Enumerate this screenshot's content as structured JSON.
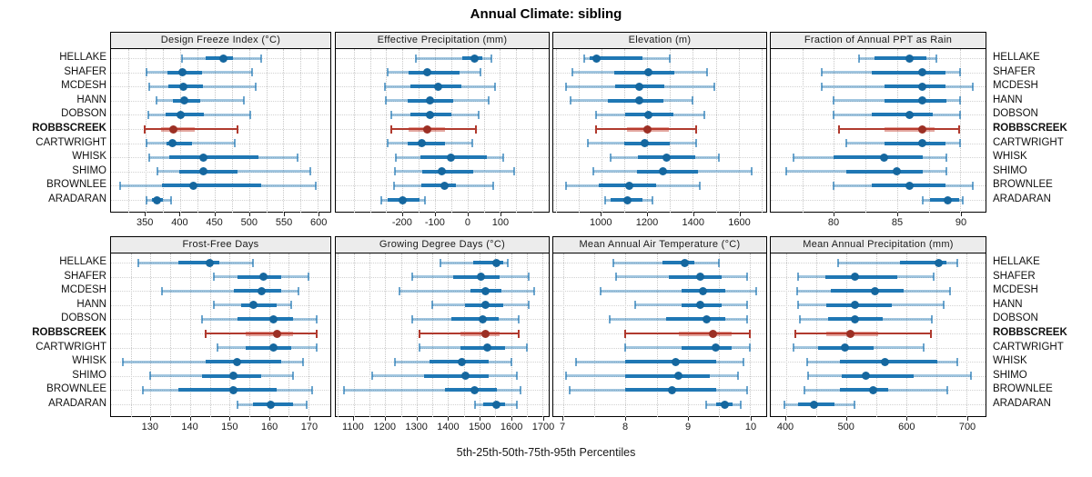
{
  "title": "Annual Climate: sibling",
  "footer": "5th-25th-50th-75th-95th Percentiles",
  "sites": [
    "HELLAKE",
    "SHAFER",
    "MCDESH",
    "HANN",
    "DOBSON",
    "ROBBSCREEK",
    "CARTWRIGHT",
    "WHISK",
    "SHIMO",
    "BROWNLEE",
    "ARADARAN"
  ],
  "highlight_site": "ROBBSCREEK",
  "colors": {
    "blue": "#1f77b4",
    "blue_dark": "#15679f",
    "blue_band": "rgba(31,119,180,0.42)",
    "blue_cap": "rgba(31,119,180,0.65)",
    "red": "#b03a2e",
    "red_dark": "#9c2f24",
    "red_band": "rgba(192,57,43,0.45)",
    "strip_bg": "#ececec",
    "grid": "#c7c7c7",
    "panel_border": "#000000"
  },
  "percentile_labels": [
    "5th",
    "25th",
    "50th",
    "75th",
    "95th"
  ],
  "chart_data": [
    {
      "type": "dot-interval",
      "title": "Design Freeze Index (°C)",
      "xlim": [
        300,
        618
      ],
      "ticks": [
        350,
        400,
        450,
        500,
        550,
        600
      ],
      "tick_labels": [
        "350",
        "400",
        "450",
        "500",
        "550",
        "600"
      ],
      "rows": [
        {
          "site": "HELLAKE",
          "values": [
            403,
            437,
            463,
            477,
            518
          ]
        },
        {
          "site": "SHAFER",
          "values": [
            352,
            382,
            404,
            432,
            505
          ]
        },
        {
          "site": "MCDESH",
          "values": [
            355,
            383,
            405,
            433,
            510
          ]
        },
        {
          "site": "HANN",
          "values": [
            366,
            390,
            406,
            429,
            492
          ]
        },
        {
          "site": "DOBSON",
          "values": [
            354,
            379,
            401,
            434,
            502
          ]
        },
        {
          "site": "ROBBSCREEK",
          "values": [
            349,
            372,
            391,
            421,
            484
          ]
        },
        {
          "site": "CARTWRIGHT",
          "values": [
            351,
            380,
            389,
            417,
            479
          ]
        },
        {
          "site": "WHISK",
          "values": [
            355,
            385,
            434,
            514,
            571
          ]
        },
        {
          "site": "SHIMO",
          "values": [
            367,
            399,
            434,
            484,
            589
          ]
        },
        {
          "site": "BROWNLEE",
          "values": [
            313,
            374,
            420,
            518,
            597
          ]
        },
        {
          "site": "ARADARAN",
          "values": [
            352,
            360,
            367,
            375,
            387
          ]
        }
      ]
    },
    {
      "type": "dot-interval",
      "title": "Effective Precipitation (mm)",
      "xlim": [
        -405,
        250
      ],
      "ticks": [
        -200,
        -100,
        0,
        100
      ],
      "tick_labels": [
        "-200",
        "-100",
        "0",
        "100"
      ],
      "rows": [
        {
          "site": "HELLAKE",
          "values": [
            -160,
            -15,
            22,
            45,
            75
          ]
        },
        {
          "site": "SHAFER",
          "values": [
            -245,
            -180,
            -125,
            -25,
            40
          ]
        },
        {
          "site": "MCDESH",
          "values": [
            -255,
            -175,
            -90,
            -20,
            85
          ]
        },
        {
          "site": "HANN",
          "values": [
            -250,
            -185,
            -115,
            -45,
            65
          ]
        },
        {
          "site": "DOBSON",
          "values": [
            -235,
            -175,
            -115,
            -50,
            35
          ]
        },
        {
          "site": "ROBBSCREEK",
          "values": [
            -235,
            -180,
            -125,
            -70,
            25
          ]
        },
        {
          "site": "CARTWRIGHT",
          "values": [
            -245,
            -185,
            -140,
            -70,
            15
          ]
        },
        {
          "site": "WHISK",
          "values": [
            -220,
            -145,
            -50,
            60,
            110
          ]
        },
        {
          "site": "SHIMO",
          "values": [
            -222,
            -140,
            -80,
            18,
            145
          ]
        },
        {
          "site": "BROWNLEE",
          "values": [
            -225,
            -142,
            -70,
            -35,
            80
          ]
        },
        {
          "site": "ARADARAN",
          "values": [
            -265,
            -245,
            -200,
            -148,
            -130
          ]
        }
      ]
    },
    {
      "type": "dot-interval",
      "title": "Elevation (m)",
      "xlim": [
        790,
        1720
      ],
      "ticks": [
        1000,
        1200,
        1400,
        1600
      ],
      "tick_labels": [
        "1000",
        "1200",
        "1400",
        "1600"
      ],
      "rows": [
        {
          "site": "HELLAKE",
          "values": [
            925,
            950,
            980,
            1180,
            1300
          ]
        },
        {
          "site": "SHAFER",
          "values": [
            875,
            1055,
            1205,
            1320,
            1460
          ]
        },
        {
          "site": "MCDESH",
          "values": [
            845,
            1060,
            1165,
            1275,
            1495
          ]
        },
        {
          "site": "HANN",
          "values": [
            865,
            1030,
            1165,
            1270,
            1400
          ]
        },
        {
          "site": "DOBSON",
          "values": [
            975,
            1105,
            1205,
            1315,
            1450
          ]
        },
        {
          "site": "ROBBSCREEK",
          "values": [
            975,
            1110,
            1200,
            1295,
            1415
          ]
        },
        {
          "site": "CARTWRIGHT",
          "values": [
            940,
            1100,
            1190,
            1300,
            1415
          ]
        },
        {
          "site": "WHISK",
          "values": [
            1040,
            1160,
            1285,
            1410,
            1515
          ]
        },
        {
          "site": "SHIMO",
          "values": [
            965,
            1155,
            1270,
            1420,
            1655
          ]
        },
        {
          "site": "BROWNLEE",
          "values": [
            845,
            990,
            1120,
            1240,
            1430
          ]
        },
        {
          "site": "ARADARAN",
          "values": [
            1015,
            1040,
            1115,
            1180,
            1225
          ]
        }
      ]
    },
    {
      "type": "dot-interval",
      "title": "Fraction of Annual PPT as Rain",
      "xlim": [
        75,
        92
      ],
      "ticks": [
        80,
        85,
        90
      ],
      "tick_labels": [
        "80",
        "85",
        "90"
      ],
      "rows": [
        {
          "site": "HELLAKE",
          "values": [
            82,
            83.2,
            86,
            87.3,
            88.1
          ]
        },
        {
          "site": "SHAFER",
          "values": [
            79,
            83,
            87,
            88.8,
            90
          ]
        },
        {
          "site": "MCDESH",
          "values": [
            79,
            84,
            87,
            88.8,
            91
          ]
        },
        {
          "site": "HANN",
          "values": [
            80,
            84,
            87,
            88.9,
            90
          ]
        },
        {
          "site": "DOBSON",
          "values": [
            80,
            83,
            86,
            87.8,
            90
          ]
        },
        {
          "site": "ROBBSCREEK",
          "values": [
            80.4,
            84,
            87,
            88,
            89.9
          ]
        },
        {
          "site": "CARTWRIGHT",
          "values": [
            81,
            84,
            87,
            88.8,
            90
          ]
        },
        {
          "site": "WHISK",
          "values": [
            76.8,
            80,
            84,
            87,
            88.9
          ]
        },
        {
          "site": "SHIMO",
          "values": [
            76.2,
            81,
            85,
            87,
            88.9
          ]
        },
        {
          "site": "BROWNLEE",
          "values": [
            80,
            83,
            86,
            88.8,
            91
          ]
        },
        {
          "site": "ARADARAN",
          "values": [
            87,
            87.6,
            89,
            89.9,
            90.2
          ]
        }
      ]
    },
    {
      "type": "dot-interval",
      "title": "Frost-Free Days",
      "xlim": [
        120,
        175.5
      ],
      "ticks": [
        130,
        140,
        150,
        160,
        170
      ],
      "tick_labels": [
        "130",
        "140",
        "150",
        "160",
        "170"
      ],
      "rows": [
        {
          "site": "HELLAKE",
          "values": [
            127,
            137,
            145,
            147.5,
            156
          ]
        },
        {
          "site": "SHAFER",
          "values": [
            146,
            152,
            158.5,
            163,
            170
          ]
        },
        {
          "site": "MCDESH",
          "values": [
            133,
            151,
            158,
            163,
            167.5
          ]
        },
        {
          "site": "HANN",
          "values": [
            146,
            153,
            156,
            162,
            165.5
          ]
        },
        {
          "site": "DOBSON",
          "values": [
            143,
            152,
            161,
            166,
            172
          ]
        },
        {
          "site": "ROBBSCREEK",
          "values": [
            144,
            154,
            162,
            166,
            172
          ]
        },
        {
          "site": "CARTWRIGHT",
          "values": [
            147,
            154,
            161,
            165.5,
            172
          ]
        },
        {
          "site": "WHISK",
          "values": [
            123,
            144,
            152,
            163,
            168.5
          ]
        },
        {
          "site": "SHIMO",
          "values": [
            130,
            143,
            151,
            158,
            166
          ]
        },
        {
          "site": "BROWNLEE",
          "values": [
            128,
            137,
            151,
            162,
            171
          ]
        },
        {
          "site": "ARADARAN",
          "values": [
            152,
            156,
            160.5,
            166,
            169.5
          ]
        }
      ]
    },
    {
      "type": "dot-interval",
      "title": "Growing Degree Days (°C)",
      "xlim": [
        1043,
        1720
      ],
      "ticks": [
        1100,
        1200,
        1300,
        1400,
        1500,
        1600,
        1700
      ],
      "tick_labels": [
        "1100",
        "1200",
        "1300",
        "1400",
        "1500",
        "1600",
        "1700"
      ],
      "rows": [
        {
          "site": "HELLAKE",
          "values": [
            1375,
            1480,
            1555,
            1575,
            1590
          ]
        },
        {
          "site": "SHAFER",
          "values": [
            1285,
            1415,
            1505,
            1565,
            1655
          ]
        },
        {
          "site": "MCDESH",
          "values": [
            1245,
            1470,
            1520,
            1570,
            1675
          ]
        },
        {
          "site": "HANN",
          "values": [
            1350,
            1455,
            1520,
            1575,
            1655
          ]
        },
        {
          "site": "DOBSON",
          "values": [
            1285,
            1410,
            1510,
            1560,
            1625
          ]
        },
        {
          "site": "ROBBSCREEK",
          "values": [
            1310,
            1440,
            1520,
            1565,
            1625
          ]
        },
        {
          "site": "CARTWRIGHT",
          "values": [
            1310,
            1440,
            1525,
            1580,
            1650
          ]
        },
        {
          "site": "WHISK",
          "values": [
            1230,
            1340,
            1445,
            1530,
            1600
          ]
        },
        {
          "site": "SHIMO",
          "values": [
            1160,
            1325,
            1455,
            1530,
            1620
          ]
        },
        {
          "site": "BROWNLEE",
          "values": [
            1070,
            1390,
            1485,
            1555,
            1630
          ]
        },
        {
          "site": "ARADARAN",
          "values": [
            1485,
            1512,
            1555,
            1580,
            1620
          ]
        }
      ]
    },
    {
      "type": "dot-interval",
      "title": "Mean Annual Air Temperature (°C)",
      "xlim": [
        6.84,
        10.26
      ],
      "ticks": [
        7,
        8,
        9,
        10
      ],
      "tick_labels": [
        "7",
        "8",
        "9",
        "10"
      ],
      "rows": [
        {
          "site": "HELLAKE",
          "values": [
            7.8,
            8.6,
            8.95,
            9.1,
            9.5
          ]
        },
        {
          "site": "SHAFER",
          "values": [
            7.85,
            8.7,
            9.2,
            9.55,
            9.95
          ]
        },
        {
          "site": "MCDESH",
          "values": [
            7.6,
            8.9,
            9.25,
            9.6,
            10.1
          ]
        },
        {
          "site": "HANN",
          "values": [
            8.15,
            8.9,
            9.2,
            9.55,
            9.95
          ]
        },
        {
          "site": "DOBSON",
          "values": [
            7.75,
            8.65,
            9.3,
            9.6,
            9.95
          ]
        },
        {
          "site": "ROBBSCREEK",
          "values": [
            8.0,
            8.85,
            9.4,
            9.7,
            10.0
          ]
        },
        {
          "site": "CARTWRIGHT",
          "values": [
            8.0,
            8.9,
            9.45,
            9.7,
            10.0
          ]
        },
        {
          "site": "WHISK",
          "values": [
            7.2,
            8.0,
            8.8,
            9.45,
            9.9
          ]
        },
        {
          "site": "SHIMO",
          "values": [
            7.05,
            8.0,
            8.85,
            9.35,
            9.8
          ]
        },
        {
          "site": "BROWNLEE",
          "values": [
            7.1,
            8.0,
            8.75,
            9.45,
            9.95
          ]
        },
        {
          "site": "ARADARAN",
          "values": [
            9.3,
            9.45,
            9.6,
            9.72,
            9.85
          ]
        }
      ]
    },
    {
      "type": "dot-interval",
      "title": "Mean Annual Precipitation (mm)",
      "xlim": [
        374.5,
        731.5
      ],
      "ticks": [
        400,
        500,
        600,
        700
      ],
      "tick_labels": [
        "400",
        "500",
        "600",
        "700"
      ],
      "rows": [
        {
          "site": "HELLAKE",
          "values": [
            487,
            590,
            653,
            667,
            685
          ]
        },
        {
          "site": "SHAFER",
          "values": [
            420,
            465,
            515,
            585,
            645
          ]
        },
        {
          "site": "MCDESH",
          "values": [
            418,
            475,
            548,
            595,
            672
          ]
        },
        {
          "site": "HANN",
          "values": [
            420,
            467,
            515,
            575,
            662
          ]
        },
        {
          "site": "DOBSON",
          "values": [
            423,
            470,
            515,
            560,
            643
          ]
        },
        {
          "site": "ROBBSCREEK",
          "values": [
            415,
            467,
            507,
            553,
            640
          ]
        },
        {
          "site": "CARTWRIGHT",
          "values": [
            412,
            453,
            498,
            545,
            628
          ]
        },
        {
          "site": "WHISK",
          "values": [
            435,
            490,
            565,
            652,
            685
          ]
        },
        {
          "site": "SHIMO",
          "values": [
            437,
            493,
            533,
            612,
            708
          ]
        },
        {
          "site": "BROWNLEE",
          "values": [
            430,
            490,
            545,
            570,
            668
          ]
        },
        {
          "site": "ARADARAN",
          "values": [
            397,
            420,
            447,
            480,
            513
          ]
        }
      ]
    }
  ]
}
